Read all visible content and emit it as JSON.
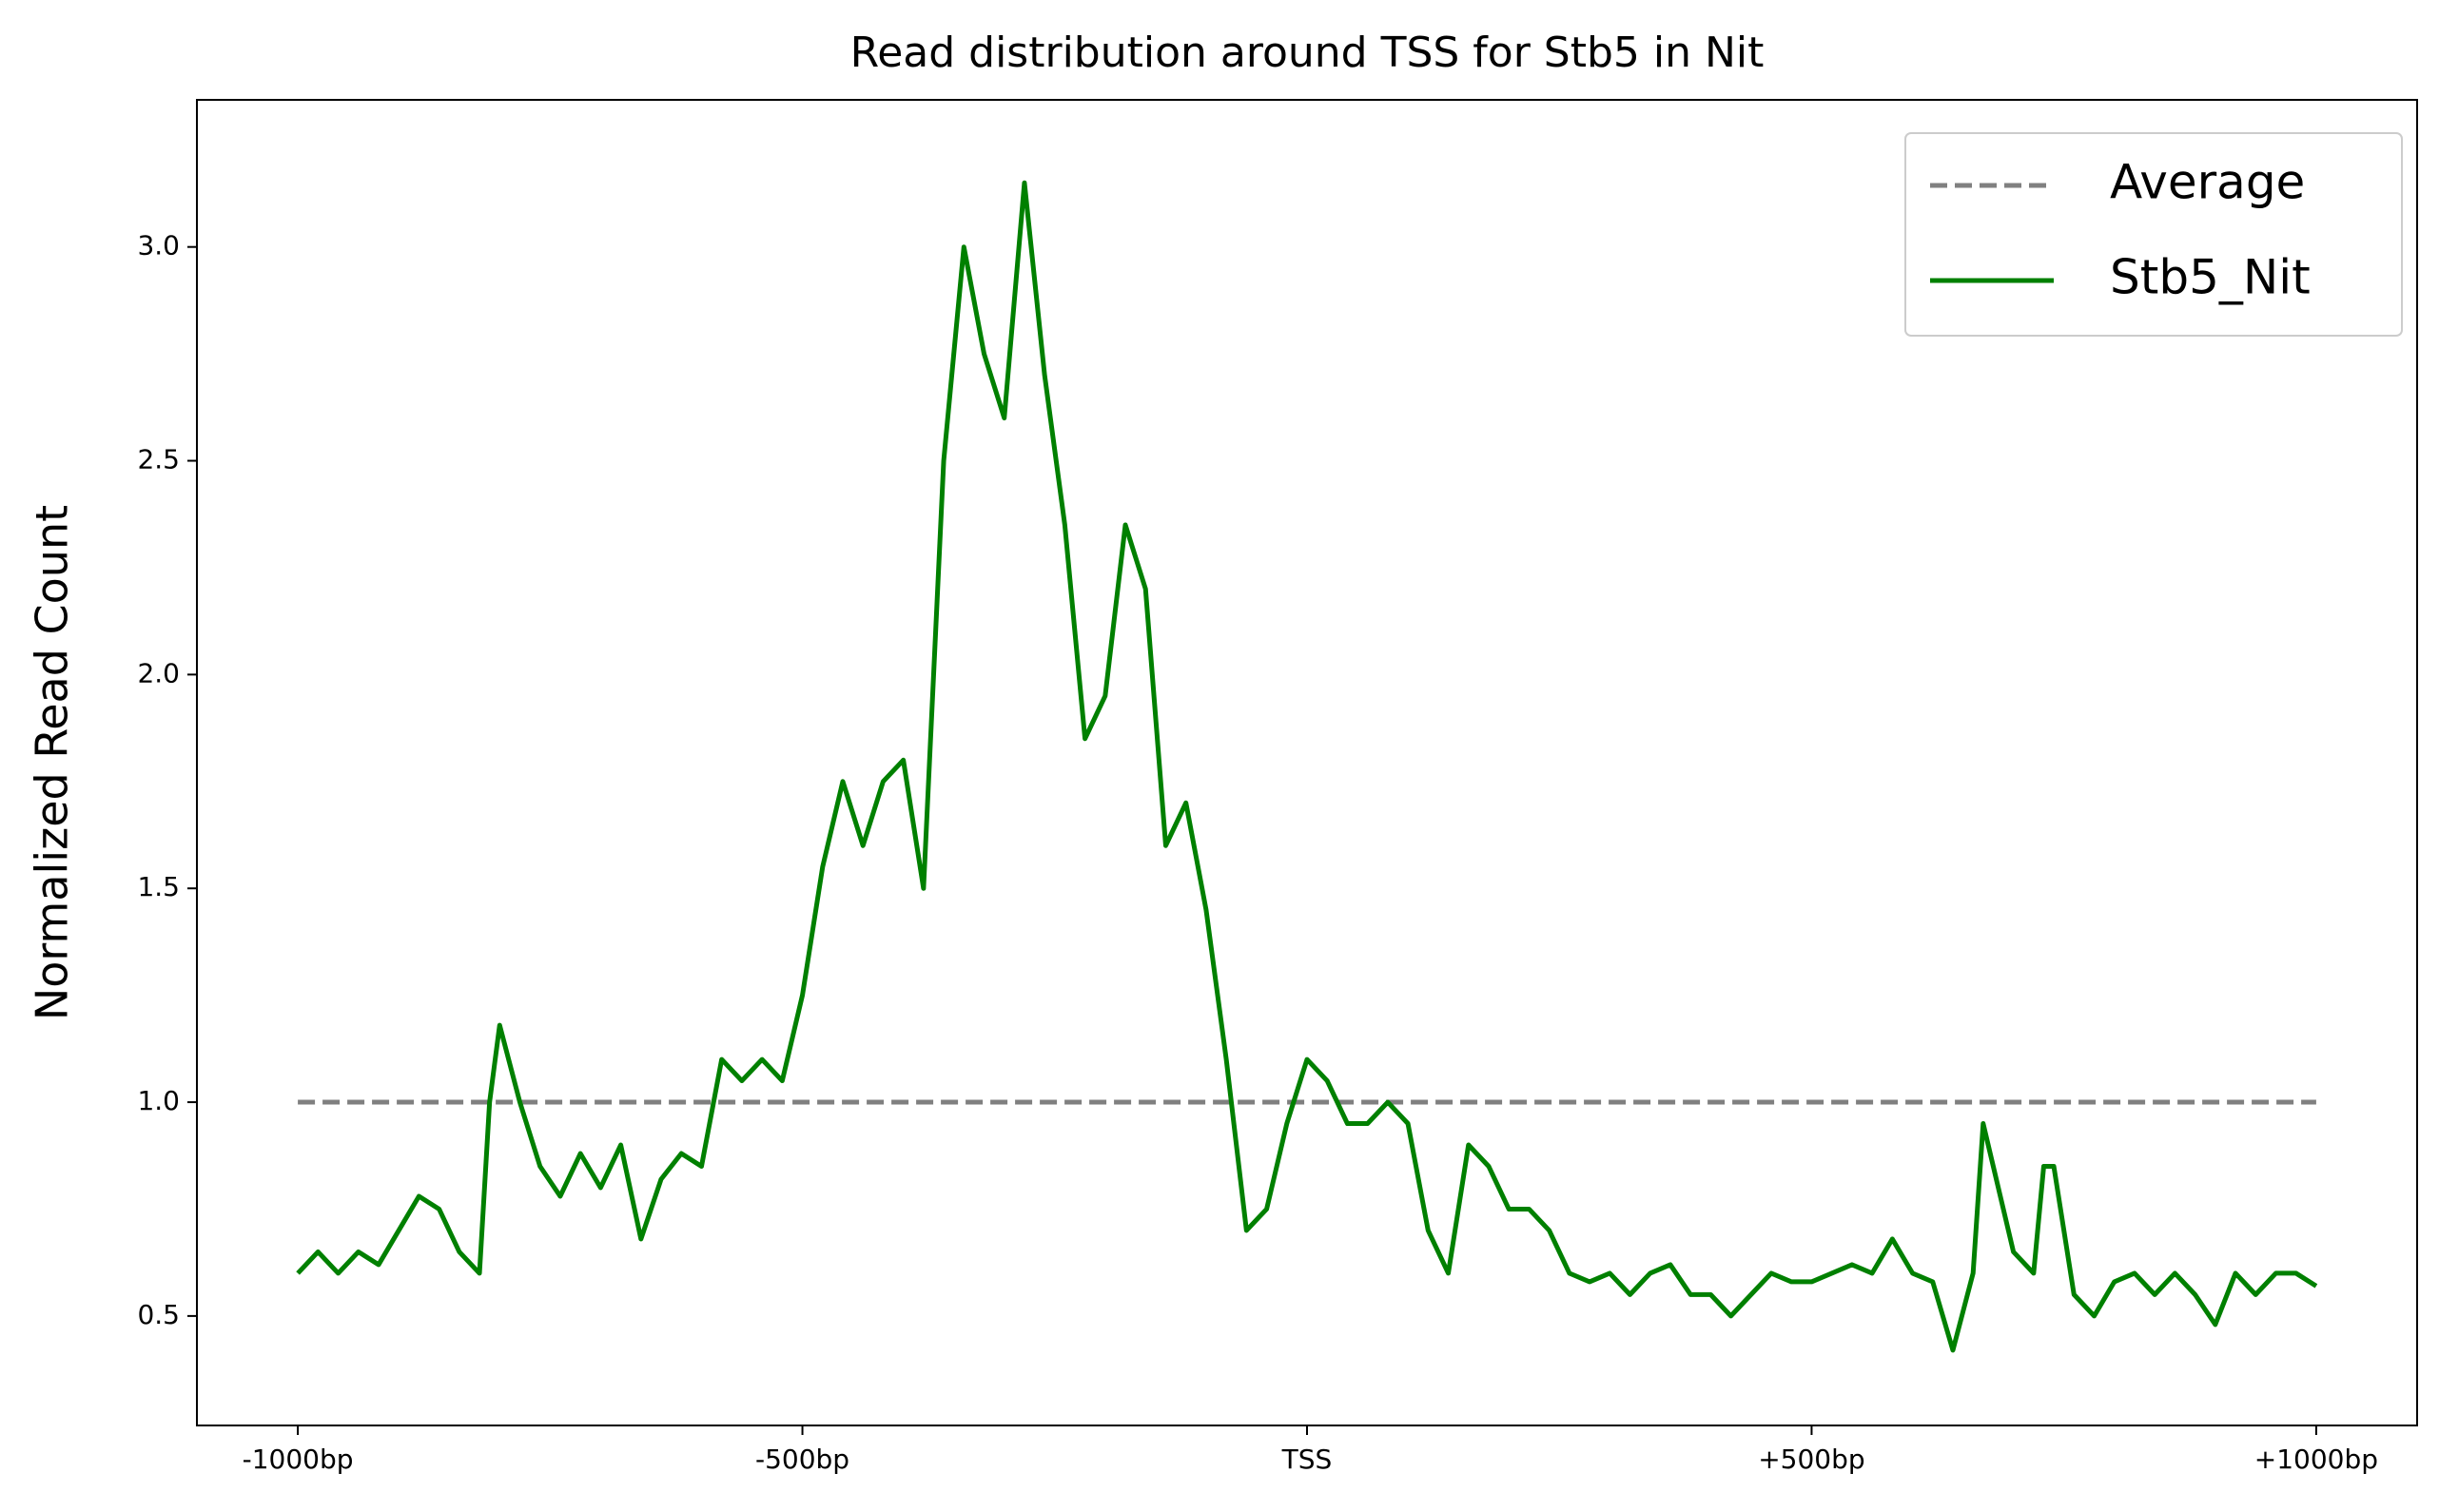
{
  "chart_data": {
    "type": "line",
    "title": "Read distribution around TSS for Stb5 in Nit",
    "ylabel": "Normalized Read Count",
    "xlim": [
      -1100,
      1100
    ],
    "ylim": [
      0.244,
      3.344
    ],
    "xticks": [
      {
        "value": -1000,
        "label": "-1000bp"
      },
      {
        "value": -500,
        "label": "-500bp"
      },
      {
        "value": 0,
        "label": "TSS"
      },
      {
        "value": 500,
        "label": "+500bp"
      },
      {
        "value": 1000,
        "label": "+1000bp"
      }
    ],
    "yticks": [
      {
        "value": 0.5,
        "label": "0.5"
      },
      {
        "value": 1,
        "label": "1.0"
      },
      {
        "value": 1.5,
        "label": "1.5"
      },
      {
        "value": 2,
        "label": "2.0"
      },
      {
        "value": 2.5,
        "label": "2.5"
      },
      {
        "value": 3,
        "label": "3.0"
      }
    ],
    "legend": "upper right",
    "series": [
      {
        "name": "Average",
        "color": "#808080",
        "linestyle": "dashed",
        "x": [
          -1000,
          1000
        ],
        "values": [
          1,
          1
        ]
      },
      {
        "name": "Stb5_Nit",
        "color": "#008000",
        "linestyle": "solid",
        "x": [
          -1000,
          -980,
          -960,
          -940,
          -920,
          -900,
          -880,
          -860,
          -840,
          -820,
          -810,
          -800,
          -780,
          -760,
          -740,
          -720,
          -700,
          -680,
          -660,
          -640,
          -620,
          -600,
          -580,
          -560,
          -540,
          -520,
          -500,
          -480,
          -460,
          -440,
          -420,
          -400,
          -380,
          -360,
          -340,
          -320,
          -300,
          -280,
          -260,
          -240,
          -220,
          -200,
          -180,
          -160,
          -140,
          -120,
          -100,
          -80,
          -60,
          -40,
          -20,
          0,
          20,
          40,
          60,
          80,
          100,
          120,
          140,
          160,
          180,
          200,
          220,
          240,
          260,
          280,
          300,
          320,
          340,
          360,
          380,
          400,
          420,
          440,
          460,
          480,
          500,
          520,
          540,
          560,
          580,
          600,
          620,
          640,
          660,
          670,
          680,
          700,
          720,
          730,
          740,
          760,
          780,
          800,
          820,
          840,
          860,
          880,
          900,
          920,
          940,
          960,
          980,
          1000
        ],
        "values": [
          0.6,
          0.65,
          0.6,
          0.65,
          0.62,
          0.7,
          0.78,
          0.75,
          0.65,
          0.6,
          1.0,
          1.18,
          1.0,
          0.85,
          0.78,
          0.88,
          0.8,
          0.9,
          0.68,
          0.82,
          0.88,
          0.85,
          1.1,
          1.05,
          1.1,
          1.05,
          1.25,
          1.55,
          1.75,
          1.6,
          1.75,
          1.8,
          1.5,
          2.5,
          3.0,
          2.75,
          2.6,
          3.15,
          2.7,
          2.35,
          1.85,
          1.95,
          2.35,
          2.2,
          1.6,
          1.7,
          1.45,
          1.1,
          0.7,
          0.75,
          0.95,
          1.1,
          1.05,
          0.95,
          0.95,
          1.0,
          0.95,
          0.7,
          0.6,
          0.9,
          0.85,
          0.75,
          0.75,
          0.7,
          0.6,
          0.58,
          0.6,
          0.55,
          0.6,
          0.62,
          0.55,
          0.55,
          0.5,
          0.55,
          0.6,
          0.58,
          0.58,
          0.6,
          0.62,
          0.6,
          0.68,
          0.6,
          0.58,
          0.42,
          0.6,
          0.95,
          0.85,
          0.65,
          0.6,
          0.85,
          0.85,
          0.55,
          0.5,
          0.58,
          0.6,
          0.55,
          0.6,
          0.55,
          0.48,
          0.6,
          0.55,
          0.6,
          0.6,
          0.57
        ]
      }
    ]
  }
}
